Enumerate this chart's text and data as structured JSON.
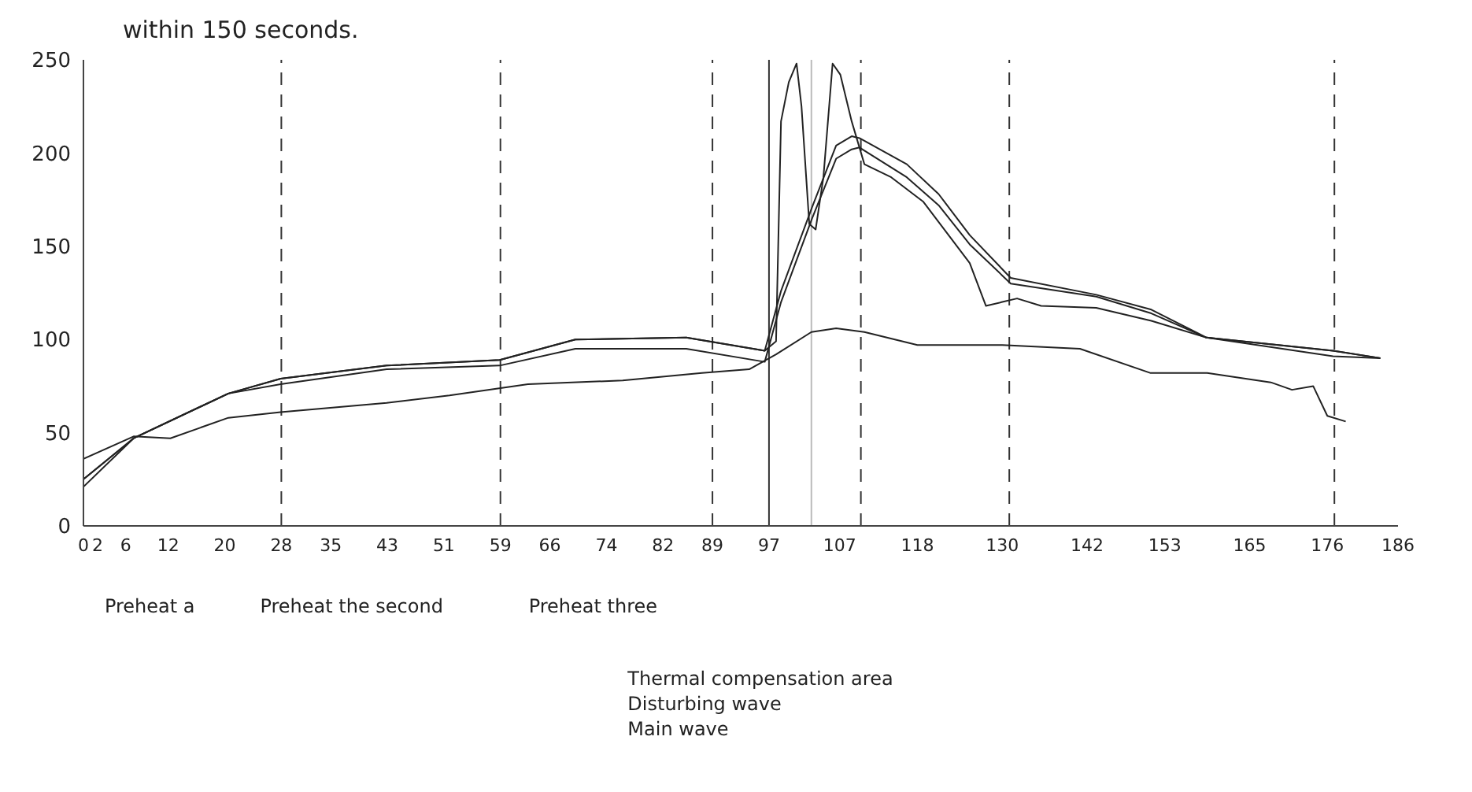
{
  "chart_data": {
    "type": "line",
    "title": "within 150 seconds.",
    "marker": "none",
    "line_style": "solid",
    "xlim": [
      0,
      186
    ],
    "xticks": [
      0,
      2,
      6,
      12,
      20,
      28,
      35,
      43,
      51,
      59,
      66,
      74,
      82,
      89,
      97,
      107,
      118,
      130,
      142,
      153,
      165,
      176,
      186
    ],
    "ylim": [
      0,
      250
    ],
    "yticks": [
      0,
      50,
      100,
      150,
      200,
      250
    ],
    "series": [
      {
        "color": "#222222",
        "x": [
          0,
          7.1,
          20.5,
          27.9,
          42.9,
          58.9,
          69.6,
          85.3,
          96.4,
          98,
          98.7,
          99.8,
          100.9,
          101.6,
          102.7,
          103.6,
          104.7,
          106,
          107.1,
          108.7,
          110.5,
          114.3,
          118.8,
          125.4,
          127.7,
          129.9,
          132.1,
          135.5,
          143.3,
          151.1,
          158.9,
          176.8,
          183.5
        ],
        "values": [
          25,
          47,
          71,
          79,
          86,
          89,
          100,
          101,
          94,
          99,
          217,
          238,
          248,
          225,
          162,
          159,
          187,
          248,
          242,
          217,
          194,
          187,
          174,
          141,
          118,
          120,
          122,
          118,
          117,
          110,
          101,
          94,
          90
        ]
      },
      {
        "color": "#222222",
        "x": [
          0,
          7.1,
          20.5,
          27.9,
          42.9,
          58.9,
          69.6,
          85.3,
          96.4,
          98.7,
          103.1,
          106.5,
          108.7,
          109.8,
          116.5,
          121,
          125.4,
          131.2,
          143.3,
          151.1,
          158.9,
          176.8,
          183.5
        ],
        "values": [
          25,
          47,
          71,
          79,
          86,
          89,
          100,
          101,
          94,
          126,
          171,
          204,
          209,
          208,
          194,
          178,
          156,
          133,
          124,
          116,
          101,
          94,
          90
        ]
      },
      {
        "color": "#222222",
        "x": [
          0,
          7.1,
          20.5,
          27.9,
          42.9,
          58.9,
          69.6,
          85.3,
          96.4,
          98.7,
          103.1,
          106.5,
          108.7,
          109.8,
          116.5,
          121,
          125.4,
          131.2,
          143.3,
          151.1,
          158.9,
          176.8,
          183.5
        ],
        "values": [
          21,
          47,
          71,
          76,
          84,
          86,
          95,
          95,
          88,
          120,
          165,
          197,
          202,
          203,
          187,
          172,
          151,
          130,
          123,
          114,
          101,
          91,
          90
        ]
      },
      {
        "color": "#222222",
        "x": [
          0,
          7.1,
          12.3,
          20.5,
          27.9,
          42.9,
          51.8,
          62.9,
          76.3,
          87.5,
          94.2,
          98,
          103,
          106.5,
          110.5,
          118,
          130,
          141,
          151,
          159,
          168,
          171,
          174,
          176,
          178.6
        ],
        "values": [
          36,
          48,
          47,
          58,
          61,
          66,
          70,
          76,
          78,
          82,
          84,
          92,
          104,
          106,
          104,
          97,
          97,
          95,
          82,
          82,
          77,
          73,
          75,
          59,
          56
        ]
      }
    ],
    "ref_lines": [
      {
        "axis": "x",
        "value": 28,
        "line_style": "dashed",
        "color": "#333333"
      },
      {
        "axis": "x",
        "value": 59,
        "line_style": "dashed",
        "color": "#333333"
      },
      {
        "axis": "x",
        "value": 89,
        "line_style": "dashed",
        "color": "#333333"
      },
      {
        "axis": "x",
        "value": 97,
        "line_style": "solid",
        "color": "#333333"
      },
      {
        "axis": "x",
        "value": 103,
        "line_style": "solid",
        "color": "#bbbbbb"
      },
      {
        "axis": "x",
        "value": 110,
        "line_style": "dashed",
        "color": "#333333"
      },
      {
        "axis": "x",
        "value": 131,
        "line_style": "dashed",
        "color": "#333333"
      },
      {
        "axis": "x",
        "value": 177,
        "line_style": "dashed",
        "color": "#333333"
      }
    ],
    "annotations": [
      "Preheat a",
      "Preheat the second",
      "Preheat three",
      "Thermal compensation area",
      "Disturbing wave",
      "Main wave"
    ]
  }
}
